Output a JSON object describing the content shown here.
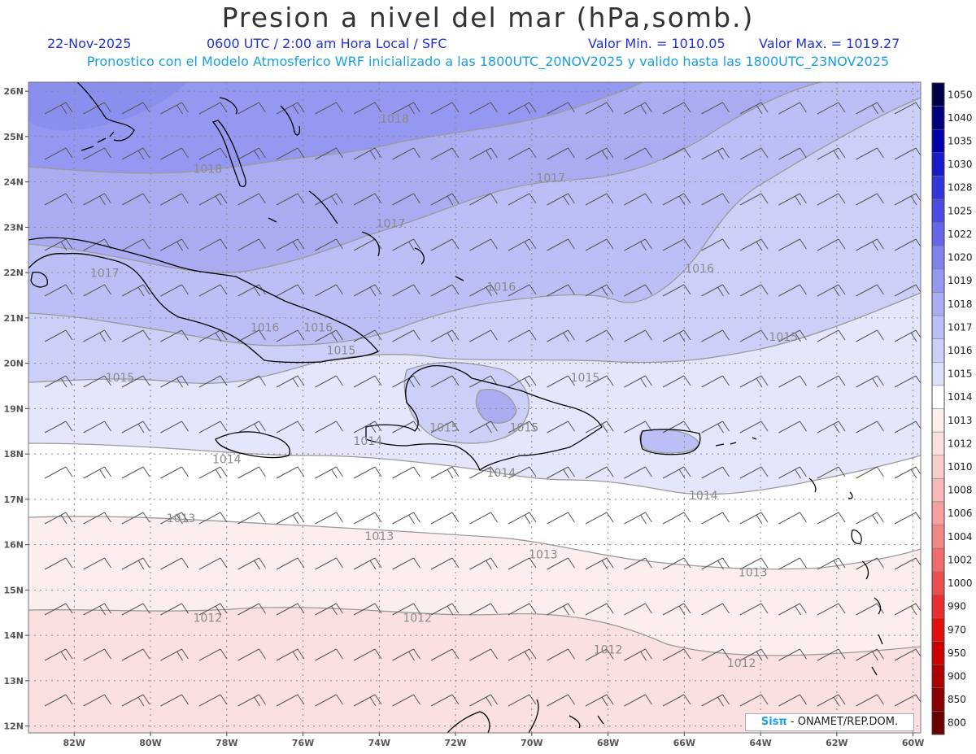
{
  "header": {
    "title": "Presion a nivel del mar (hPa,somb.)",
    "date": "22-Nov-2025",
    "time": "0600 UTC / 2:00 am Hora Local / SFC",
    "min_label": "Valor Min. = 1010.05",
    "max_label": "Valor Max. = 1019.27",
    "forecast": "Pronostico con el Modelo Atmosferico WRF inicializado a las 1800UTC_20NOV2025 y valido hasta las  1800UTC_23NOV2025"
  },
  "colors": {
    "blue_deep": "#8a8fee",
    "blue_mid": "#b4b8f3",
    "blue_light": "#cccff7",
    "blue_pale": "#e4e6fb",
    "white": "#ffffff",
    "pink_pale": "#fdeeee",
    "pink_light": "#fae0e0"
  },
  "map": {
    "lat_labels": [
      "26N",
      "25N",
      "24N",
      "23N",
      "22N",
      "21N",
      "20N",
      "19N",
      "18N",
      "17N",
      "16N",
      "15N",
      "14N",
      "13N",
      "12N"
    ],
    "lon_labels": [
      "82W",
      "80W",
      "78W",
      "76W",
      "74W",
      "72W",
      "70W",
      "68W",
      "66W",
      "64W",
      "62W",
      "60W"
    ],
    "isobar_labels": [
      {
        "text": "1018",
        "lon": -73.6,
        "lat": 25.3
      },
      {
        "text": "1018",
        "lon": -78.5,
        "lat": 24.2
      },
      {
        "text": "1017",
        "lon": -69.5,
        "lat": 24.0
      },
      {
        "text": "1017",
        "lon": -73.7,
        "lat": 23.0
      },
      {
        "text": "1017",
        "lon": -81.2,
        "lat": 21.9
      },
      {
        "text": "1016",
        "lon": -65.6,
        "lat": 22.0
      },
      {
        "text": "1016",
        "lon": -70.8,
        "lat": 21.6
      },
      {
        "text": "1016",
        "lon": -77.0,
        "lat": 20.7
      },
      {
        "text": "1016",
        "lon": -75.6,
        "lat": 20.7
      },
      {
        "text": "1015",
        "lon": -75.0,
        "lat": 20.2
      },
      {
        "text": "1015",
        "lon": -63.4,
        "lat": 20.5
      },
      {
        "text": "1015",
        "lon": -68.6,
        "lat": 19.6
      },
      {
        "text": "1015",
        "lon": -80.8,
        "lat": 19.6
      },
      {
        "text": "1015",
        "lon": -70.2,
        "lat": 18.5
      },
      {
        "text": "1015",
        "lon": -72.3,
        "lat": 18.5
      },
      {
        "text": "1014",
        "lon": -74.3,
        "lat": 18.2
      },
      {
        "text": "1014",
        "lon": -78.0,
        "lat": 17.8
      },
      {
        "text": "1014",
        "lon": -70.8,
        "lat": 17.5
      },
      {
        "text": "1014",
        "lon": -65.5,
        "lat": 17.0
      },
      {
        "text": "1013",
        "lon": -79.2,
        "lat": 16.5
      },
      {
        "text": "1013",
        "lon": -74.0,
        "lat": 16.1
      },
      {
        "text": "1013",
        "lon": -69.7,
        "lat": 15.7
      },
      {
        "text": "1013",
        "lon": -64.2,
        "lat": 15.3
      },
      {
        "text": "1012",
        "lon": -78.5,
        "lat": 14.3
      },
      {
        "text": "1012",
        "lon": -73.0,
        "lat": 14.3
      },
      {
        "text": "1012",
        "lon": -68.0,
        "lat": 13.6
      },
      {
        "text": "1012",
        "lon": -64.5,
        "lat": 13.3
      }
    ]
  },
  "legend": {
    "levels": [
      "1050",
      "1040",
      "1035",
      "1030",
      "1028",
      "1025",
      "1022",
      "1020",
      "1019",
      "1018",
      "1017",
      "1016",
      "1015",
      "1014",
      "1013",
      "1012",
      "1010",
      "1008",
      "1006",
      "1004",
      "1002",
      "1000",
      "990",
      "970",
      "950",
      "900",
      "850",
      "800"
    ],
    "colors": [
      "#00004a",
      "#00007e",
      "#0000a8",
      "#1a1ac8",
      "#3434d8",
      "#4c4ce2",
      "#6666e8",
      "#8082ec",
      "#9598f0",
      "#aaacf2",
      "#bcbff5",
      "#cccff7",
      "#dddff9",
      "#ffffff",
      "#fdeeee",
      "#fbdede",
      "#f9cccc",
      "#f7b8b8",
      "#f4a0a0",
      "#f18888",
      "#ee6c6c",
      "#eb5050",
      "#e83030",
      "#e01010",
      "#c80000",
      "#aa0000",
      "#8a0000",
      "#6a0000"
    ]
  },
  "credit": {
    "brand": "Sisπ",
    "text": " - ONAMET/REP.DOM."
  }
}
